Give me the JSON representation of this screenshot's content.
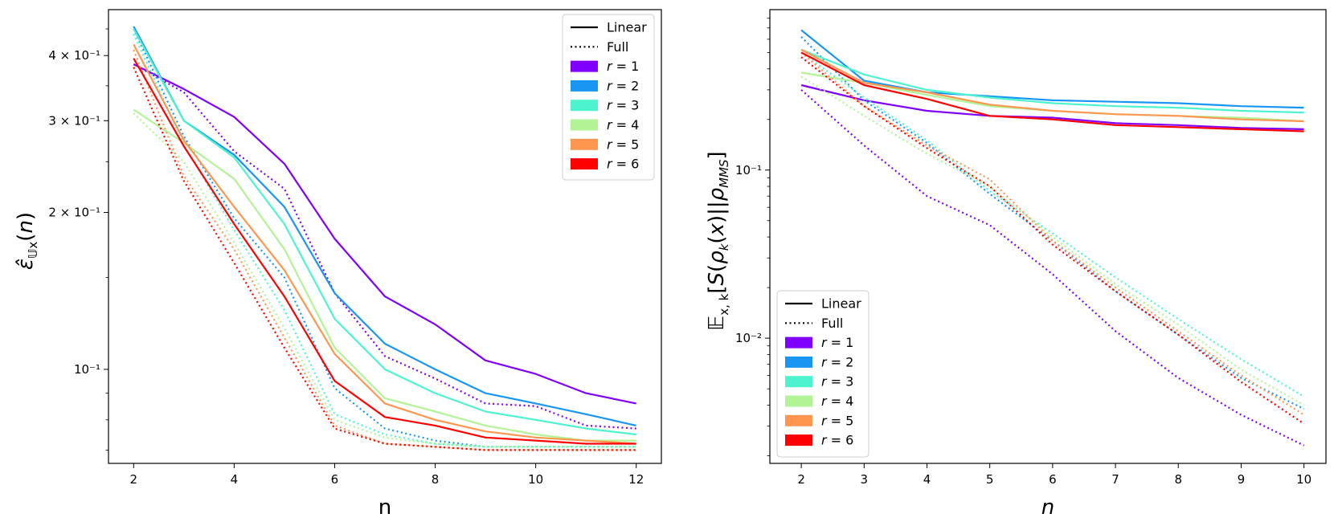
{
  "chart_data": [
    {
      "type": "line",
      "xlabel": "n",
      "ylabel": "ε̂_{𝕌x}(n)",
      "yscale": "log",
      "xlim": [
        1.5,
        12.5
      ],
      "ylim": [
        0.066,
        0.49
      ],
      "xticks": [
        2,
        4,
        6,
        8,
        10,
        12
      ],
      "xtick_labels": [
        "2",
        "4",
        "6",
        "8",
        "10",
        "12"
      ],
      "yticks": [
        0.1,
        0.2,
        0.3,
        0.4
      ],
      "ytick_labels": [
        "10⁻¹",
        "2 × 10⁻¹",
        "3 × 10⁻¹",
        "4 × 10⁻¹"
      ],
      "legend_position": "top-right",
      "legend_styles": [
        "Linear",
        "Full"
      ],
      "x": [
        2,
        3,
        4,
        5,
        6,
        7,
        8,
        9,
        10,
        11,
        12
      ],
      "series": [
        {
          "name": "r = 1",
          "color": "#8000ff",
          "linear": [
            0.385,
            0.345,
            0.305,
            0.248,
            0.178,
            0.138,
            0.122,
            0.104,
            0.098,
            0.09,
            0.086
          ],
          "full": [
            0.385,
            0.34,
            0.262,
            0.222,
            0.14,
            0.106,
            0.096,
            0.086,
            0.085,
            0.078,
            0.077
          ]
        },
        {
          "name": "r = 2",
          "color": "#1996f3",
          "linear": [
            0.455,
            0.3,
            0.258,
            0.205,
            0.14,
            0.112,
            0.1,
            0.09,
            0.086,
            0.082,
            0.078
          ],
          "full": [
            0.45,
            0.28,
            0.195,
            0.15,
            0.092,
            0.077,
            0.073,
            0.071,
            0.071,
            0.071,
            0.071
          ]
        },
        {
          "name": "r = 3",
          "color": "#4df3ce",
          "linear": [
            0.45,
            0.3,
            0.255,
            0.19,
            0.125,
            0.1,
            0.09,
            0.083,
            0.08,
            0.077,
            0.075
          ],
          "full": [
            0.44,
            0.27,
            0.185,
            0.13,
            0.082,
            0.075,
            0.072,
            0.071,
            0.071,
            0.071,
            0.071
          ]
        },
        {
          "name": "r = 4",
          "color": "#b2f396",
          "linear": [
            0.315,
            0.272,
            0.232,
            0.17,
            0.11,
            0.088,
            0.083,
            0.078,
            0.075,
            0.073,
            0.073
          ],
          "full": [
            0.31,
            0.25,
            0.175,
            0.12,
            0.08,
            0.074,
            0.072,
            0.071,
            0.071,
            0.071,
            0.071
          ]
        },
        {
          "name": "r = 5",
          "color": "#ff964f",
          "linear": [
            0.42,
            0.275,
            0.205,
            0.155,
            0.107,
            0.086,
            0.08,
            0.076,
            0.074,
            0.073,
            0.072
          ],
          "full": [
            0.41,
            0.235,
            0.17,
            0.115,
            0.078,
            0.072,
            0.071,
            0.07,
            0.07,
            0.07,
            0.07
          ]
        },
        {
          "name": "r = 6",
          "color": "#ff0000",
          "linear": [
            0.395,
            0.268,
            0.19,
            0.138,
            0.095,
            0.081,
            0.078,
            0.074,
            0.073,
            0.072,
            0.072
          ],
          "full": [
            0.38,
            0.23,
            0.16,
            0.11,
            0.077,
            0.072,
            0.071,
            0.07,
            0.07,
            0.07,
            0.07
          ]
        }
      ]
    },
    {
      "type": "line",
      "xlabel": "n",
      "ylabel": "𝔼_{x,k}[S(ρ_k(x)||ρ_MMS]",
      "yscale": "log",
      "xlim": [
        1.5,
        10.35
      ],
      "ylim": [
        0.0018,
        0.9
      ],
      "xticks": [
        2,
        3,
        4,
        5,
        6,
        7,
        8,
        9,
        10
      ],
      "xtick_labels": [
        "2",
        "3",
        "4",
        "5",
        "6",
        "7",
        "8",
        "9",
        "10"
      ],
      "yticks": [
        0.01,
        0.1
      ],
      "ytick_labels": [
        "10⁻²",
        "10⁻¹"
      ],
      "legend_position": "bottom-left",
      "legend_styles": [
        "Linear",
        "Full"
      ],
      "x": [
        2,
        3,
        4,
        5,
        6,
        7,
        8,
        9,
        10
      ],
      "series": [
        {
          "name": "r = 1",
          "color": "#8000ff",
          "linear": [
            0.32,
            0.26,
            0.225,
            0.21,
            0.205,
            0.19,
            0.185,
            0.178,
            0.175
          ],
          "full": [
            0.3,
            0.14,
            0.07,
            0.047,
            0.024,
            0.011,
            0.0058,
            0.0035,
            0.0023
          ]
        },
        {
          "name": "r = 2",
          "color": "#1996f3",
          "linear": [
            0.68,
            0.34,
            0.29,
            0.275,
            0.26,
            0.255,
            0.25,
            0.24,
            0.235
          ],
          "full": [
            0.62,
            0.26,
            0.145,
            0.072,
            0.038,
            0.019,
            0.0105,
            0.0058,
            0.0038
          ]
        },
        {
          "name": "r = 3",
          "color": "#4df3ce",
          "linear": [
            0.52,
            0.37,
            0.3,
            0.27,
            0.25,
            0.24,
            0.235,
            0.225,
            0.22
          ],
          "full": [
            0.5,
            0.27,
            0.15,
            0.075,
            0.042,
            0.023,
            0.013,
            0.0075,
            0.0045
          ]
        },
        {
          "name": "r = 4",
          "color": "#b2f396",
          "linear": [
            0.38,
            0.33,
            0.28,
            0.24,
            0.225,
            0.215,
            0.21,
            0.205,
            0.195
          ],
          "full": [
            0.36,
            0.21,
            0.125,
            0.08,
            0.04,
            0.021,
            0.012,
            0.0065,
            0.004
          ]
        },
        {
          "name": "r = 5",
          "color": "#ff964f",
          "linear": [
            0.52,
            0.33,
            0.29,
            0.245,
            0.225,
            0.215,
            0.21,
            0.2,
            0.195
          ],
          "full": [
            0.5,
            0.24,
            0.14,
            0.088,
            0.038,
            0.02,
            0.011,
            0.006,
            0.0035
          ]
        },
        {
          "name": "r = 6",
          "color": "#ff0000",
          "linear": [
            0.5,
            0.32,
            0.265,
            0.21,
            0.2,
            0.185,
            0.18,
            0.175,
            0.17
          ],
          "full": [
            0.47,
            0.24,
            0.135,
            0.08,
            0.036,
            0.019,
            0.0105,
            0.0055,
            0.0031
          ]
        }
      ]
    }
  ]
}
